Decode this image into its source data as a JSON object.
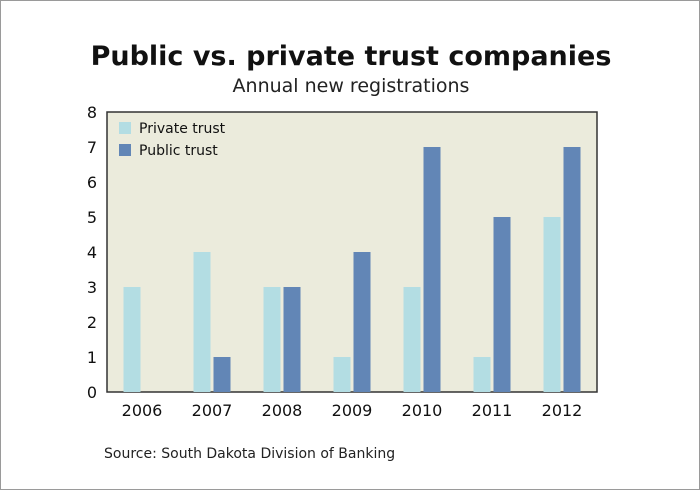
{
  "chart_data": {
    "type": "bar",
    "title": "Public vs. private trust companies",
    "subtitle": "Annual new registrations",
    "categories": [
      "2006",
      "2007",
      "2008",
      "2009",
      "2010",
      "2011",
      "2012"
    ],
    "series": [
      {
        "name": "Private trust",
        "color": "#b3dde3",
        "values": [
          3,
          4,
          3,
          1,
          3,
          1,
          5
        ]
      },
      {
        "name": "Public trust",
        "color": "#6286b6",
        "values": [
          0,
          1,
          3,
          4,
          7,
          5,
          7
        ]
      }
    ],
    "ylim": [
      0,
      8
    ],
    "yticks": [
      0,
      1,
      2,
      3,
      4,
      5,
      6,
      7,
      8
    ],
    "grid": false,
    "legend": "top-left",
    "background_color": "#ebebdc",
    "source": "Source: South Dakota Division of Banking"
  }
}
